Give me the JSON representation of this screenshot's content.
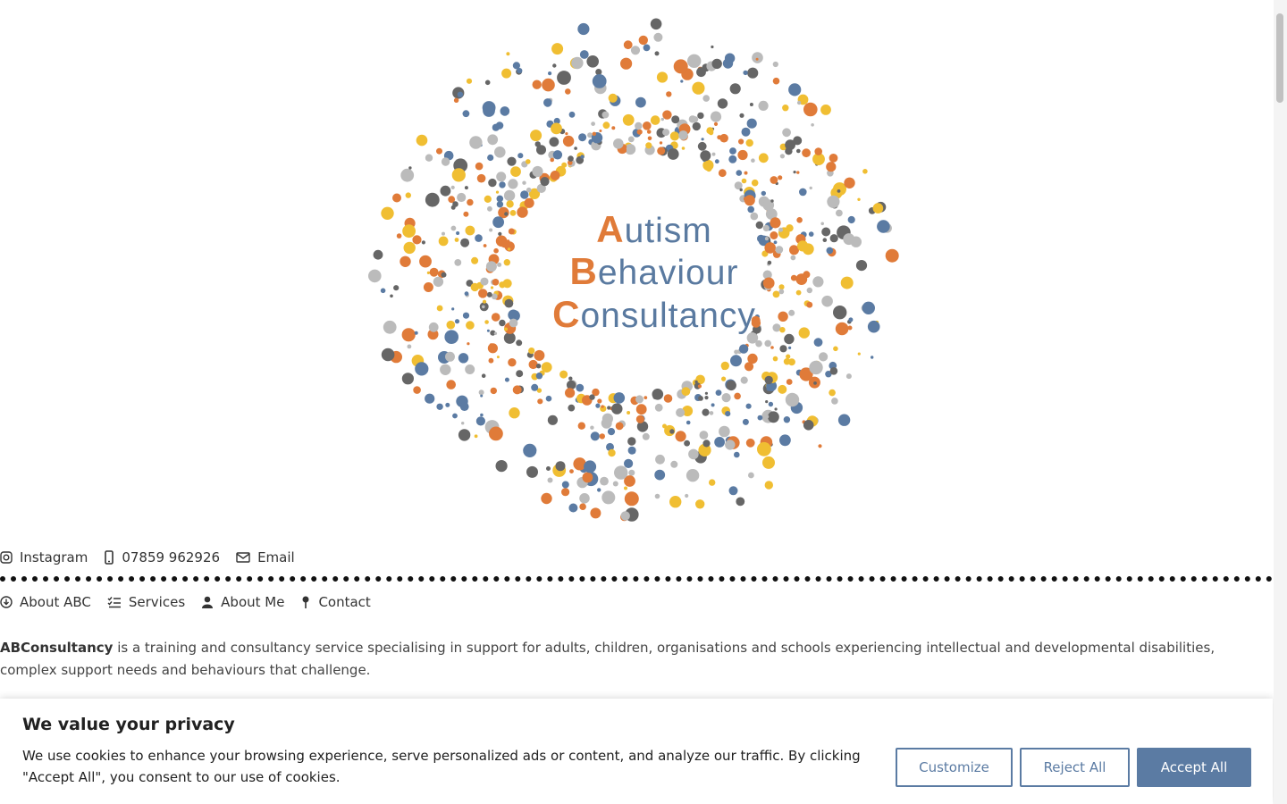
{
  "logo": {
    "lines": [
      "Autism",
      "Behaviour",
      "Consultancy"
    ]
  },
  "contact": [
    "Instagram",
    "07859 962926",
    "Email"
  ],
  "nav": [
    "About ABC",
    "Services",
    "About Me",
    "Contact"
  ],
  "intro": {
    "bold": "ABConsultancy",
    "text": "is a training and consultancy service specialising in support for adults, children, organisations and schools experiencing intellectual and developmental disabilities, complex support needs and behaviours that challenge."
  },
  "cookie": {
    "title": "We value your privacy",
    "message": "We use cookies to enhance your browsing experience, serve personalized ads or content, and analyze our traffic. By clicking \"Accept All\", you consent to our use of cookies.",
    "buttons": [
      "Customize",
      "Reject All",
      "Accept All"
    ]
  }
}
